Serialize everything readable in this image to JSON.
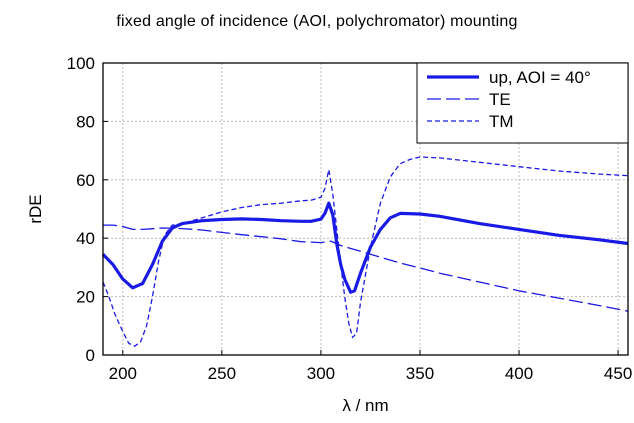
{
  "chart_data": {
    "type": "line",
    "title": "fixed angle of incidence (AOI, polychromator) mounting",
    "xlabel": "λ / nm",
    "ylabel": "rDE",
    "xlim": [
      190,
      455
    ],
    "ylim": [
      0,
      100
    ],
    "xticks": [
      200,
      250,
      300,
      350,
      400,
      450
    ],
    "yticks": [
      0,
      20,
      40,
      60,
      80,
      100
    ],
    "grid": true,
    "legend_position": "top-right",
    "series": [
      {
        "name": "up, AOI = 40°",
        "style": "solid-thick",
        "x": [
          190,
          195,
          200,
          205,
          210,
          215,
          220,
          225,
          230,
          240,
          250,
          260,
          270,
          280,
          290,
          295,
          300,
          302,
          304,
          306,
          308,
          310,
          312,
          315,
          317,
          320,
          325,
          330,
          335,
          340,
          350,
          360,
          380,
          400,
          420,
          440,
          455
        ],
        "y": [
          34.5,
          31,
          26,
          23,
          24.5,
          31,
          39,
          43.5,
          45,
          46,
          46.4,
          46.6,
          46.4,
          46,
          45.8,
          45.8,
          46.5,
          48.5,
          52,
          48,
          38,
          31,
          26,
          21.5,
          22,
          28,
          37,
          43,
          47,
          48.5,
          48.3,
          47.5,
          45,
          43,
          41,
          39.5,
          38.2
        ]
      },
      {
        "name": "TE",
        "style": "long-dash",
        "x": [
          190,
          195,
          200,
          205,
          210,
          220,
          230,
          240,
          250,
          260,
          270,
          280,
          290,
          300,
          305,
          310,
          320,
          330,
          340,
          350,
          360,
          380,
          400,
          420,
          440,
          455
        ],
        "y": [
          44.5,
          44.5,
          44,
          43,
          43,
          43.5,
          43.3,
          42.8,
          42,
          41.2,
          40.5,
          39.8,
          38.8,
          38.5,
          39,
          37.5,
          35.5,
          33.5,
          31.5,
          29.8,
          28,
          25,
          22,
          19.5,
          17,
          15
        ]
      },
      {
        "name": "TM",
        "style": "short-dash",
        "x": [
          190,
          193,
          196,
          200,
          203,
          206,
          209,
          212,
          215,
          218,
          221,
          225,
          230,
          240,
          250,
          260,
          270,
          280,
          290,
          295,
          300,
          302,
          304,
          306,
          308,
          310,
          312,
          314,
          316,
          318,
          320,
          325,
          330,
          335,
          340,
          345,
          350,
          360,
          380,
          400,
          420,
          440,
          455
        ],
        "y": [
          25,
          20,
          14,
          8,
          4,
          3,
          4.5,
          10,
          20,
          32,
          41,
          44.5,
          45,
          47,
          49,
          50.5,
          51.5,
          52,
          52.8,
          53,
          54,
          57,
          63.5,
          55,
          43,
          31,
          20,
          11,
          6,
          7.5,
          18,
          37,
          52,
          61,
          65.5,
          67,
          67.8,
          67.5,
          66,
          64.5,
          63,
          62,
          61.4
        ]
      }
    ]
  }
}
